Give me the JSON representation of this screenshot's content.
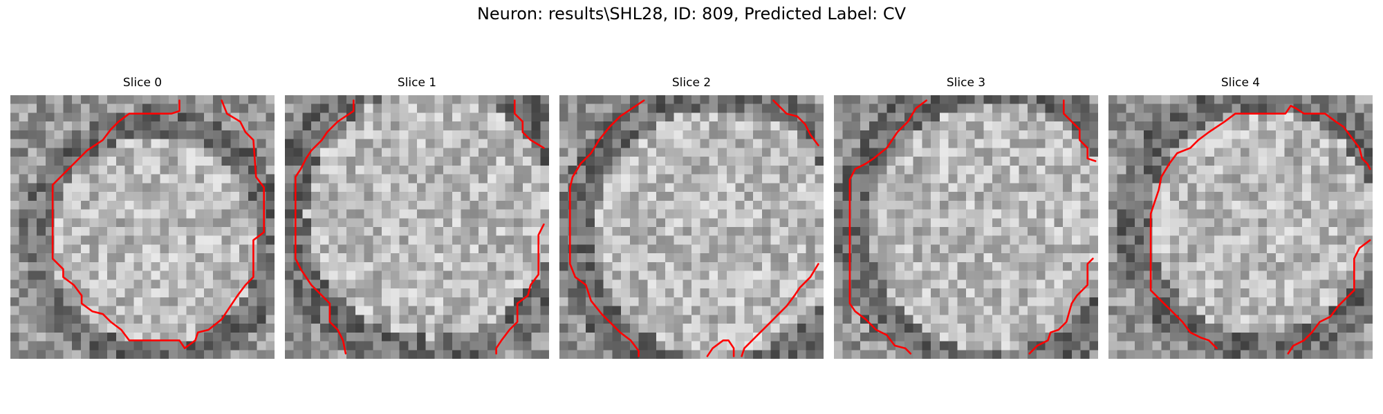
{
  "figure": {
    "title": "Neuron: results\\SHL28, ID: 809, Predicted Label: CV"
  },
  "slices": [
    {
      "label": "Slice 0",
      "seed": 11,
      "bright_center": [
        0.55,
        0.55
      ],
      "bright_radius": 0.46,
      "contours": [
        [
          [
            0.64,
            0.02
          ],
          [
            0.64,
            0.06
          ],
          [
            0.61,
            0.07
          ],
          [
            0.45,
            0.07
          ],
          [
            0.41,
            0.1
          ],
          [
            0.38,
            0.13
          ],
          [
            0.35,
            0.17
          ],
          [
            0.29,
            0.21
          ],
          [
            0.25,
            0.25
          ],
          [
            0.22,
            0.28
          ],
          [
            0.19,
            0.31
          ],
          [
            0.16,
            0.34
          ],
          [
            0.16,
            0.62
          ],
          [
            0.2,
            0.66
          ],
          [
            0.2,
            0.69
          ],
          [
            0.24,
            0.72
          ],
          [
            0.27,
            0.76
          ],
          [
            0.27,
            0.79
          ],
          [
            0.31,
            0.82
          ],
          [
            0.35,
            0.83
          ],
          [
            0.38,
            0.86
          ],
          [
            0.42,
            0.89
          ],
          [
            0.45,
            0.93
          ],
          [
            0.64,
            0.93
          ],
          [
            0.66,
            0.96
          ],
          [
            0.7,
            0.93
          ],
          [
            0.71,
            0.9
          ],
          [
            0.75,
            0.89
          ],
          [
            0.8,
            0.85
          ],
          [
            0.82,
            0.82
          ],
          [
            0.86,
            0.76
          ],
          [
            0.89,
            0.72
          ],
          [
            0.92,
            0.69
          ],
          [
            0.92,
            0.55
          ],
          [
            0.96,
            0.52
          ],
          [
            0.96,
            0.35
          ],
          [
            0.93,
            0.31
          ],
          [
            0.92,
            0.17
          ],
          [
            0.89,
            0.14
          ],
          [
            0.87,
            0.1
          ],
          [
            0.82,
            0.07
          ],
          [
            0.8,
            0.02
          ]
        ]
      ]
    },
    {
      "label": "Slice 1",
      "seed": 23,
      "bright_center": [
        0.55,
        0.45
      ],
      "bright_radius": 0.55,
      "contours": [
        [
          [
            0.26,
            0.02
          ],
          [
            0.26,
            0.06
          ],
          [
            0.2,
            0.1
          ],
          [
            0.16,
            0.14
          ],
          [
            0.14,
            0.17
          ],
          [
            0.1,
            0.21
          ],
          [
            0.08,
            0.24
          ],
          [
            0.06,
            0.28
          ],
          [
            0.04,
            0.31
          ],
          [
            0.04,
            0.62
          ],
          [
            0.06,
            0.66
          ],
          [
            0.08,
            0.69
          ],
          [
            0.1,
            0.72
          ],
          [
            0.14,
            0.76
          ],
          [
            0.17,
            0.79
          ],
          [
            0.17,
            0.86
          ],
          [
            0.2,
            0.89
          ],
          [
            0.22,
            0.93
          ],
          [
            0.23,
            0.98
          ]
        ],
        [
          [
            0.87,
            0.02
          ],
          [
            0.87,
            0.07
          ],
          [
            0.9,
            0.1
          ],
          [
            0.9,
            0.14
          ],
          [
            0.93,
            0.17
          ],
          [
            0.98,
            0.2
          ]
        ],
        [
          [
            0.98,
            0.49
          ],
          [
            0.96,
            0.53
          ],
          [
            0.96,
            0.68
          ],
          [
            0.93,
            0.72
          ],
          [
            0.92,
            0.76
          ],
          [
            0.88,
            0.79
          ],
          [
            0.88,
            0.86
          ],
          [
            0.85,
            0.89
          ],
          [
            0.82,
            0.93
          ],
          [
            0.8,
            0.96
          ],
          [
            0.8,
            0.98
          ]
        ]
      ]
    },
    {
      "label": "Slice 2",
      "seed": 37,
      "bright_center": [
        0.6,
        0.52
      ],
      "bright_radius": 0.55,
      "contours": [
        [
          [
            0.32,
            0.02
          ],
          [
            0.26,
            0.06
          ],
          [
            0.23,
            0.08
          ],
          [
            0.19,
            0.12
          ],
          [
            0.15,
            0.17
          ],
          [
            0.12,
            0.22
          ],
          [
            0.08,
            0.26
          ],
          [
            0.05,
            0.31
          ],
          [
            0.04,
            0.35
          ],
          [
            0.04,
            0.64
          ],
          [
            0.06,
            0.69
          ],
          [
            0.1,
            0.72
          ],
          [
            0.12,
            0.78
          ],
          [
            0.16,
            0.83
          ],
          [
            0.2,
            0.87
          ],
          [
            0.23,
            0.9
          ],
          [
            0.27,
            0.93
          ],
          [
            0.3,
            0.97
          ],
          [
            0.3,
            0.99
          ]
        ],
        [
          [
            0.81,
            0.02
          ],
          [
            0.84,
            0.05
          ],
          [
            0.86,
            0.07
          ],
          [
            0.9,
            0.08
          ],
          [
            0.93,
            0.11
          ],
          [
            0.95,
            0.15
          ],
          [
            0.98,
            0.19
          ]
        ],
        [
          [
            0.98,
            0.64
          ],
          [
            0.95,
            0.69
          ],
          [
            0.91,
            0.73
          ],
          [
            0.89,
            0.76
          ],
          [
            0.86,
            0.8
          ],
          [
            0.82,
            0.84
          ],
          [
            0.78,
            0.88
          ],
          [
            0.74,
            0.92
          ],
          [
            0.7,
            0.96
          ],
          [
            0.69,
            0.99
          ]
        ],
        [
          [
            0.56,
            0.99
          ],
          [
            0.58,
            0.96
          ],
          [
            0.62,
            0.93
          ],
          [
            0.64,
            0.93
          ],
          [
            0.66,
            0.96
          ],
          [
            0.66,
            0.99
          ]
        ]
      ]
    },
    {
      "label": "Slice 3",
      "seed": 53,
      "bright_center": [
        0.6,
        0.5
      ],
      "bright_radius": 0.55,
      "contours": [
        [
          [
            0.35,
            0.02
          ],
          [
            0.31,
            0.05
          ],
          [
            0.28,
            0.1
          ],
          [
            0.24,
            0.14
          ],
          [
            0.2,
            0.2
          ],
          [
            0.15,
            0.24
          ],
          [
            0.12,
            0.26
          ],
          [
            0.08,
            0.28
          ],
          [
            0.06,
            0.32
          ],
          [
            0.06,
            0.79
          ],
          [
            0.08,
            0.82
          ],
          [
            0.12,
            0.85
          ],
          [
            0.16,
            0.89
          ],
          [
            0.2,
            0.91
          ],
          [
            0.23,
            0.95
          ],
          [
            0.27,
            0.96
          ],
          [
            0.29,
            0.98
          ]
        ],
        [
          [
            0.87,
            0.02
          ],
          [
            0.87,
            0.07
          ],
          [
            0.9,
            0.1
          ],
          [
            0.93,
            0.13
          ],
          [
            0.93,
            0.17
          ],
          [
            0.96,
            0.2
          ],
          [
            0.96,
            0.24
          ],
          [
            0.99,
            0.25
          ]
        ],
        [
          [
            0.98,
            0.62
          ],
          [
            0.96,
            0.64
          ],
          [
            0.96,
            0.72
          ],
          [
            0.92,
            0.76
          ],
          [
            0.9,
            0.79
          ],
          [
            0.88,
            0.86
          ],
          [
            0.85,
            0.89
          ],
          [
            0.82,
            0.9
          ],
          [
            0.81,
            0.93
          ],
          [
            0.77,
            0.95
          ],
          [
            0.74,
            0.98
          ]
        ]
      ]
    },
    {
      "label": "Slice 4",
      "seed": 71,
      "bright_center": [
        0.58,
        0.48
      ],
      "bright_radius": 0.5,
      "contours": [
        [
          [
            0.48,
            0.07
          ],
          [
            0.67,
            0.07
          ],
          [
            0.69,
            0.04
          ],
          [
            0.71,
            0.05
          ],
          [
            0.74,
            0.07
          ],
          [
            0.82,
            0.07
          ],
          [
            0.86,
            0.1
          ],
          [
            0.89,
            0.12
          ],
          [
            0.92,
            0.16
          ],
          [
            0.95,
            0.2
          ],
          [
            0.96,
            0.24
          ],
          [
            0.98,
            0.26
          ],
          [
            0.99,
            0.28
          ]
        ],
        [
          [
            0.48,
            0.07
          ],
          [
            0.44,
            0.1
          ],
          [
            0.38,
            0.14
          ],
          [
            0.34,
            0.17
          ],
          [
            0.31,
            0.2
          ],
          [
            0.26,
            0.22
          ],
          [
            0.23,
            0.26
          ],
          [
            0.2,
            0.31
          ],
          [
            0.19,
            0.36
          ],
          [
            0.17,
            0.42
          ],
          [
            0.16,
            0.45
          ],
          [
            0.16,
            0.74
          ],
          [
            0.21,
            0.79
          ],
          [
            0.24,
            0.82
          ],
          [
            0.28,
            0.86
          ],
          [
            0.31,
            0.9
          ],
          [
            0.35,
            0.92
          ],
          [
            0.38,
            0.93
          ],
          [
            0.41,
            0.96
          ]
        ],
        [
          [
            0.99,
            0.55
          ],
          [
            0.95,
            0.58
          ],
          [
            0.93,
            0.62
          ],
          [
            0.93,
            0.74
          ],
          [
            0.9,
            0.77
          ],
          [
            0.87,
            0.8
          ],
          [
            0.84,
            0.84
          ],
          [
            0.8,
            0.86
          ],
          [
            0.77,
            0.9
          ],
          [
            0.74,
            0.93
          ],
          [
            0.7,
            0.95
          ],
          [
            0.68,
            0.98
          ]
        ]
      ]
    }
  ]
}
